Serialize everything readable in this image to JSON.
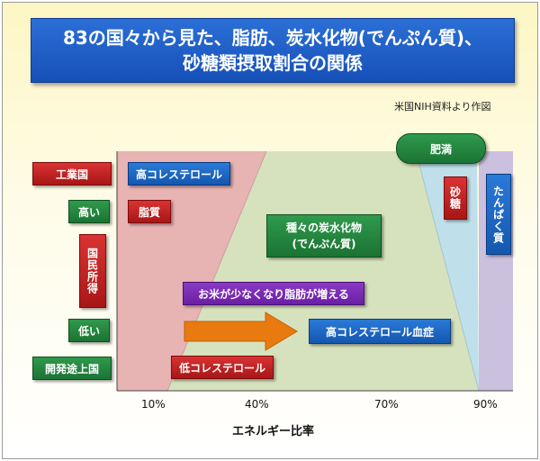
{
  "title": {
    "line1": "83の国々から見た、脂肪、炭水化物(でんぷん質)、",
    "line2": "砂糖類摂取割合の関係"
  },
  "source": "米国NIH資料より作図",
  "left_labels": {
    "industrial": "工業国",
    "high": "高い",
    "income": "国民所得",
    "low": "低い",
    "developing": "開発途上国"
  },
  "regions": {
    "high_cholesterol": "高コレステロール",
    "fat": "脂質",
    "carbs": "種々の炭水化物\n(でんぷん質)",
    "rice_fat": "お米が少なくなり脂肪が増える",
    "hypercholesterolemia": "高コレステロール血症",
    "low_cholesterol": "低コレステロール",
    "obesity": "肥満",
    "sugar": "砂糖",
    "protein": "たんぱく質"
  },
  "axis": {
    "ticks": [
      "10%",
      "40%",
      "70%",
      "90%"
    ],
    "title": "エネルギー比率"
  },
  "colors": {
    "fat_region": "#e8b3b3",
    "carb_region": "#d6e2bd",
    "sugar_region": "#bfe0ea",
    "protein_region": "#cbc1de",
    "arrow": "#e87a10"
  }
}
